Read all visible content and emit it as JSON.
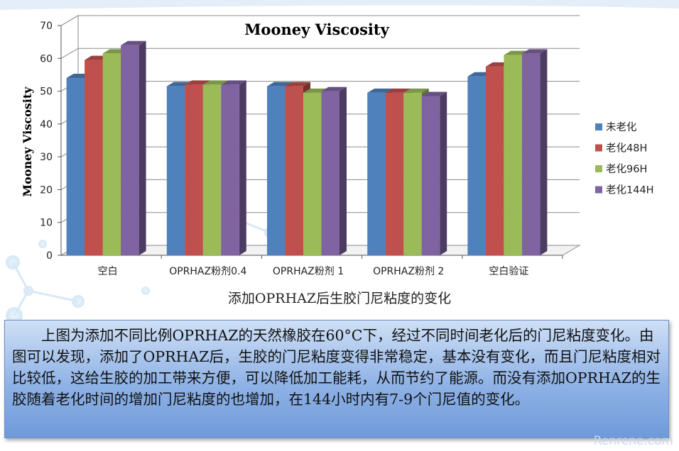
{
  "chart_data": {
    "type": "bar",
    "title": "Mooney Viscosity",
    "ylabel": "Mooney Viscosity",
    "xlabel": "",
    "ylim": [
      0,
      70
    ],
    "yticks": [
      "0",
      "10",
      "20",
      "30",
      "40",
      "50",
      "60",
      "70"
    ],
    "categories": [
      "空白",
      "OPRHAZ粉剂0.4",
      "OPRHAZ粉剂 1",
      "OPRHAZ粉剂 2",
      "空白验证"
    ],
    "series": [
      {
        "name": "未老化",
        "color": "#4f81bd",
        "values": [
          54,
          51.5,
          51.5,
          49.5,
          54.5
        ]
      },
      {
        "name": "老化48H",
        "color": "#c0504d",
        "values": [
          59.5,
          52,
          51.5,
          49.5,
          57.5
        ]
      },
      {
        "name": "老化96H",
        "color": "#9bbb59",
        "values": [
          61.5,
          52,
          49.5,
          49.5,
          61
        ]
      },
      {
        "name": "老化144H",
        "color": "#8064a2",
        "values": [
          64,
          52,
          50,
          48.5,
          61.5
        ]
      }
    ],
    "grid": true,
    "legend": "right"
  },
  "caption": "添加OPRHAZ后生胶门尼粘度的变化",
  "description": "上图为添加不同比例OPRHAZ的天然橡胶在60°C下，经过不同时间老化后的门尼粘度变化。由图可以发现，添加了OPRHAZ后，生胶的门尼粘度变得非常稳定，基本没有变化，而且门尼粘度相对比较低，这给生胶的加工带来方便，可以降低加工能耗，从而节约了能源。而没有添加OPRHAZ的生胶随着老化时间的增加门尼粘度的也增加，在144小时内有7-9个门尼值的变化。",
  "watermark": "Renrene.com"
}
